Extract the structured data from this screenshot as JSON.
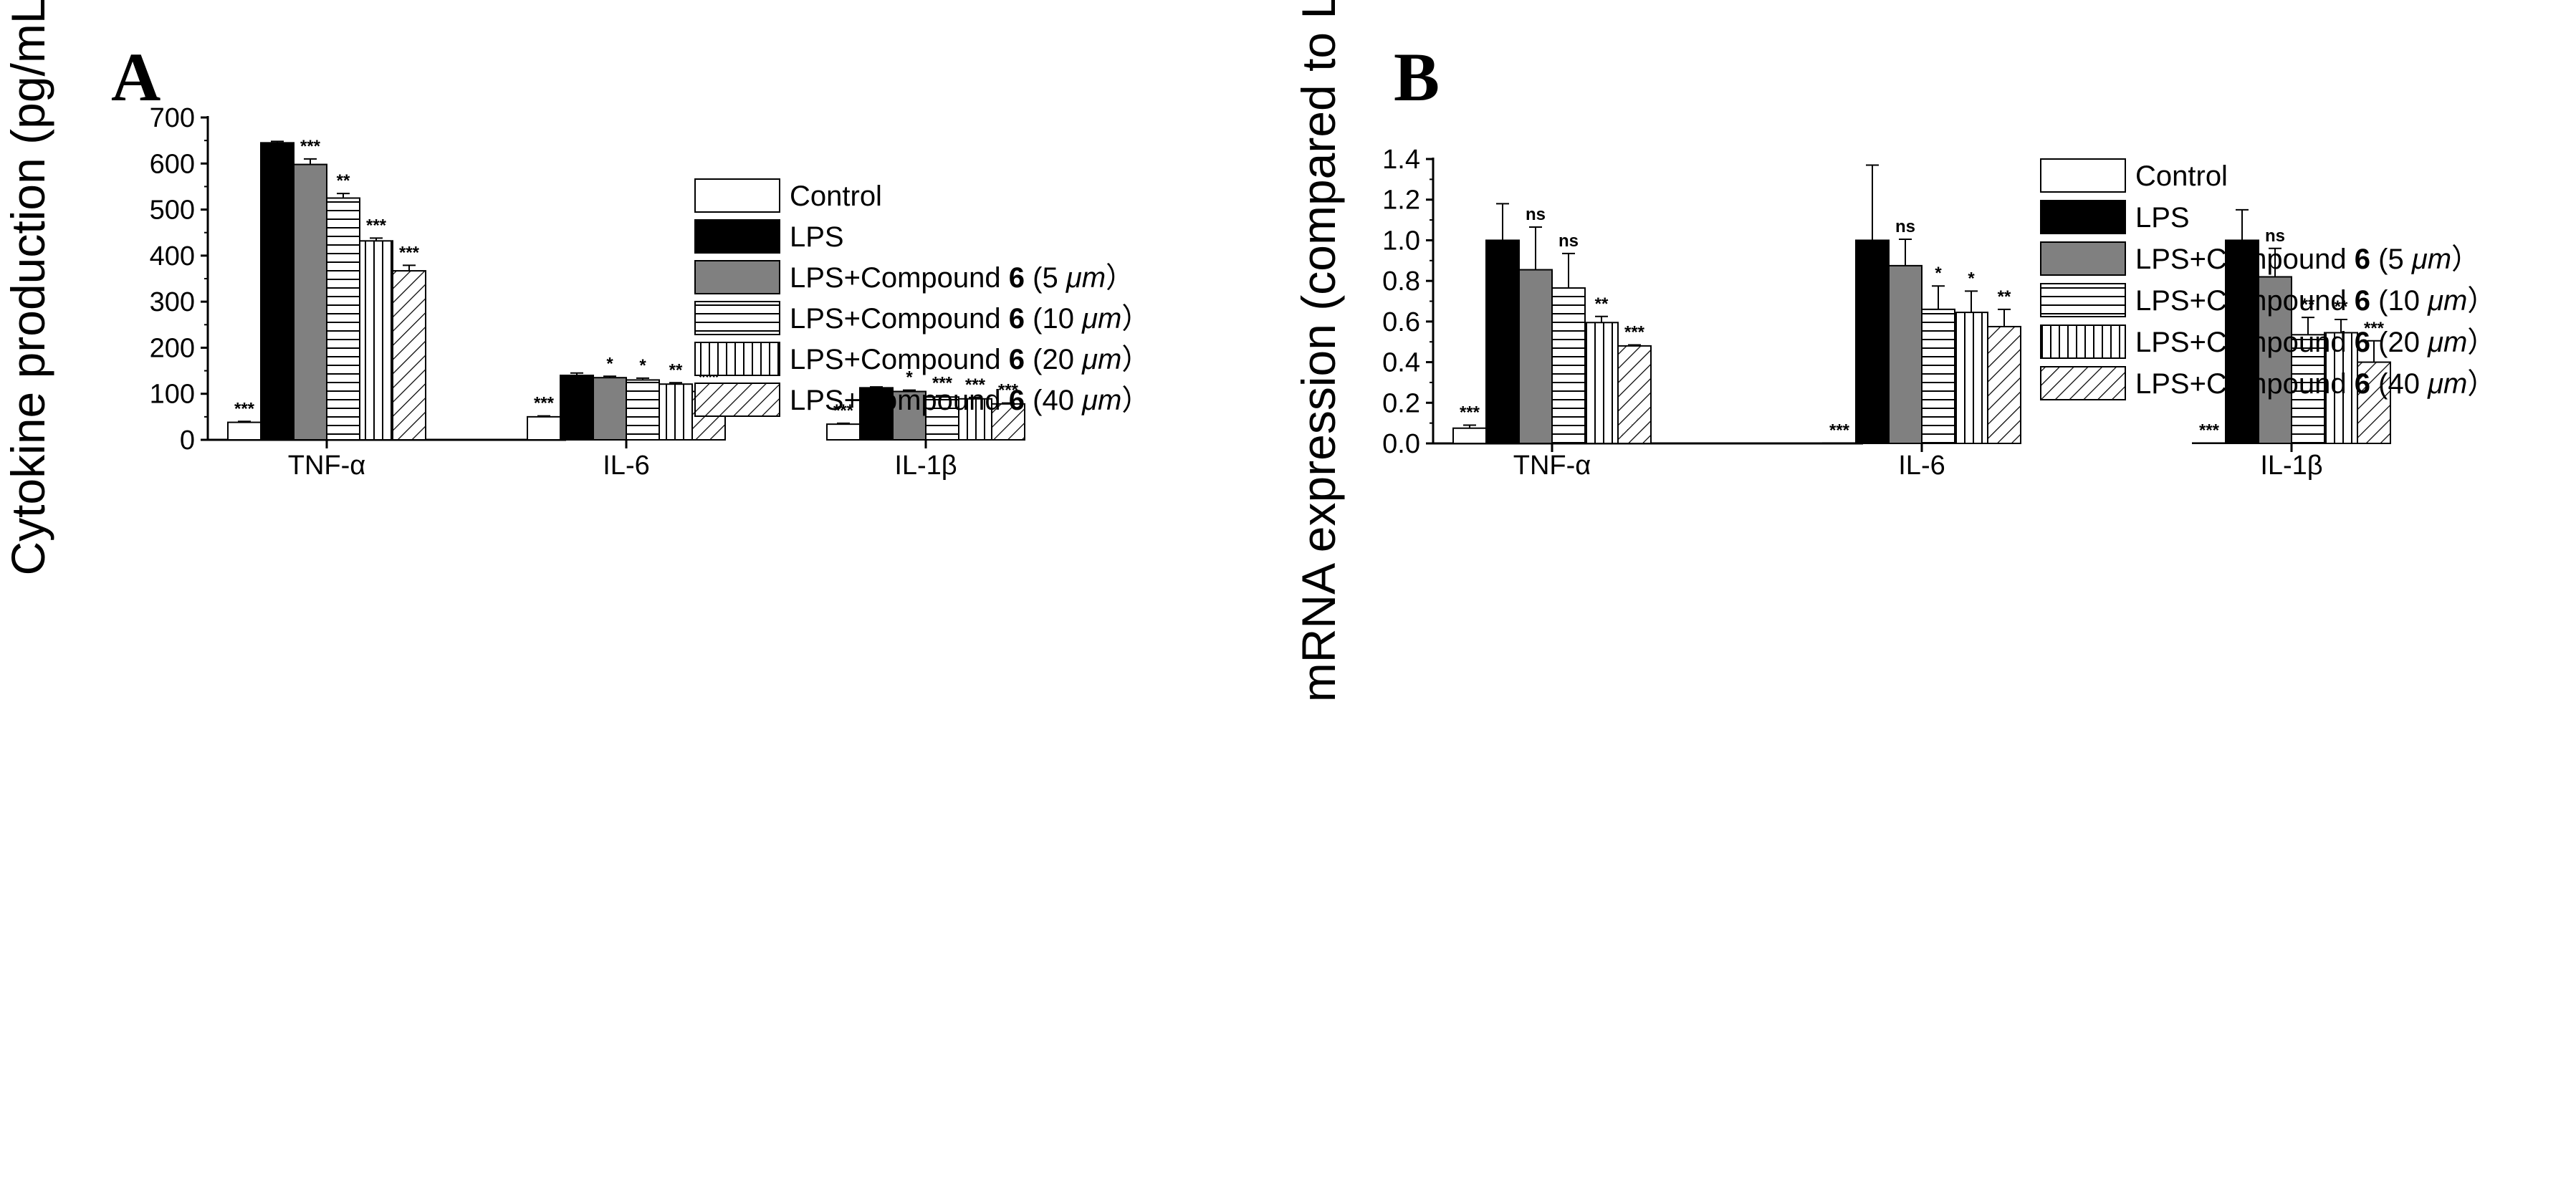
{
  "chart_data": [
    {
      "panel": "A",
      "type": "bar",
      "ylabel": "Cytokine production (pg/mL)",
      "ylim": [
        0,
        700
      ],
      "yticks": [
        "0",
        "100",
        "200",
        "300",
        "400",
        "500",
        "600",
        "700"
      ],
      "categories": [
        "TNF-α",
        "IL-6",
        "IL-1β"
      ],
      "series": [
        {
          "name": "Control",
          "values": [
            38,
            50,
            34
          ],
          "errors": [
            2,
            2,
            2
          ],
          "sig": [
            "***",
            "***",
            "***"
          ]
        },
        {
          "name": "LPS",
          "values": [
            645,
            140,
            113
          ],
          "errors": [
            3,
            5,
            2
          ],
          "sig": [
            "",
            "",
            ""
          ]
        },
        {
          "name": "LPS+Compound 6 (5 μm)",
          "values": [
            598,
            135,
            105
          ],
          "errors": [
            12,
            3,
            3
          ],
          "sig": [
            "***",
            "*",
            "*"
          ]
        },
        {
          "name": "LPS+Compound 6 (10 μm)",
          "values": [
            525,
            130,
            93
          ],
          "errors": [
            10,
            4,
            3
          ],
          "sig": [
            "**",
            "*",
            "***"
          ]
        },
        {
          "name": "LPS+Compound 6 (20 μm)",
          "values": [
            432,
            121,
            89
          ],
          "errors": [
            6,
            3,
            3
          ],
          "sig": [
            "***",
            "**",
            "***"
          ]
        },
        {
          "name": "LPS+Compound 6 (40 μm)",
          "values": [
            367,
            105,
            78
          ],
          "errors": [
            12,
            3,
            2
          ],
          "sig": [
            "***",
            "***",
            "***"
          ]
        }
      ]
    },
    {
      "panel": "B",
      "type": "bar",
      "ylabel": "mRNA expression (compared to LPS)",
      "ylim": [
        0,
        1.4
      ],
      "yticks": [
        "0.0",
        "0.2",
        "0.4",
        "0.6",
        "0.8",
        "1.0",
        "1.2",
        "1.4"
      ],
      "categories": [
        "TNF-α",
        "IL-6",
        "IL-1β"
      ],
      "series": [
        {
          "name": "Control",
          "values": [
            0.075,
            0.002,
            0.002
          ],
          "errors": [
            0.015,
            0.0,
            0.0
          ],
          "sig": [
            "***",
            "***",
            "***"
          ]
        },
        {
          "name": "LPS",
          "values": [
            1.0,
            1.0,
            1.0
          ],
          "errors": [
            0.18,
            0.37,
            0.15
          ],
          "sig": [
            "",
            "",
            ""
          ]
        },
        {
          "name": "LPS+Compound 6 (5 μm)",
          "values": [
            0.855,
            0.875,
            0.82
          ],
          "errors": [
            0.21,
            0.13,
            0.14
          ],
          "sig": [
            "ns",
            "ns",
            "ns"
          ]
        },
        {
          "name": "LPS+Compound 6 (10 μm)",
          "values": [
            0.765,
            0.66,
            0.535
          ],
          "errors": [
            0.17,
            0.115,
            0.085
          ],
          "sig": [
            "ns",
            "*",
            "**"
          ]
        },
        {
          "name": "LPS+Compound 6 (20 μm)",
          "values": [
            0.595,
            0.645,
            0.545
          ],
          "errors": [
            0.03,
            0.105,
            0.065
          ],
          "sig": [
            "**",
            "*",
            "**"
          ]
        },
        {
          "name": "LPS+Compound 6 (40 μm)",
          "values": [
            0.48,
            0.575,
            0.4
          ],
          "errors": [
            0.005,
            0.085,
            0.105
          ],
          "sig": [
            "***",
            "**",
            "***"
          ]
        }
      ]
    }
  ],
  "legend": {
    "prefix": "LPS+Compound ",
    "compound": "6",
    "items": [
      {
        "label": "Control"
      },
      {
        "label": "LPS"
      },
      {
        "label": "LPS+Compound 6 (5 μm)",
        "dose": " (5 ",
        "unit": "μm",
        "close": "）"
      },
      {
        "label": "LPS+Compound 6 (10 μm)",
        "dose": " (10 ",
        "unit": "μm",
        "close": "）"
      },
      {
        "label": "LPS+Compound 6 (20 μm)",
        "dose": " (20 ",
        "unit": "μm",
        "close": "）"
      },
      {
        "label": "LPS+Compound 6 (40 μm)",
        "dose": " (40 ",
        "unit": "μm",
        "close": "）"
      }
    ]
  }
}
